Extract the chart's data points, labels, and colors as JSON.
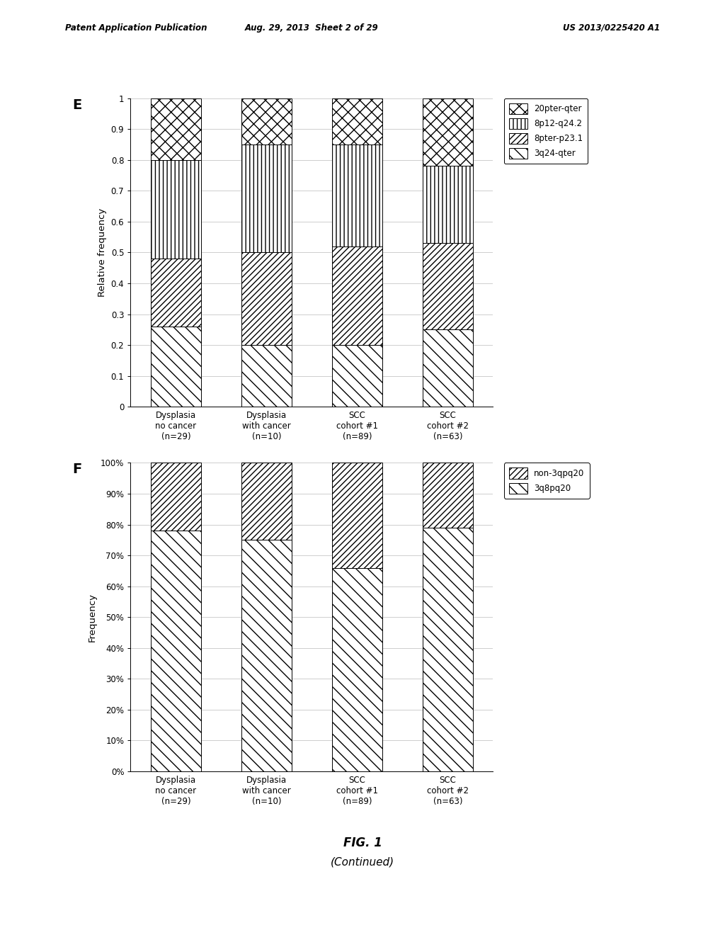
{
  "categories": [
    "Dysplasia\nno cancer\n(n=29)",
    "Dysplasia\nwith cancer\n(n=10)",
    "SCC\ncohort #1\n(n=89)",
    "SCC\ncohort #2\n(n=63)"
  ],
  "panel_e": {
    "label": "E",
    "ylabel": "Relative frequency",
    "ylim": [
      0,
      1
    ],
    "yticks": [
      0,
      0.1,
      0.2,
      0.3,
      0.4,
      0.5,
      0.6,
      0.7,
      0.8,
      0.9,
      1
    ],
    "segments": [
      "3q24-qter",
      "8pter-p23.1",
      "8p12-q24.2",
      "20pter-qter"
    ],
    "values": [
      [
        0.26,
        0.2,
        0.2,
        0.25
      ],
      [
        0.22,
        0.3,
        0.32,
        0.28
      ],
      [
        0.32,
        0.35,
        0.33,
        0.25
      ],
      [
        0.2,
        0.15,
        0.15,
        0.22
      ]
    ]
  },
  "panel_f": {
    "label": "F",
    "ylabel": "Frequency",
    "ylim": [
      0,
      1
    ],
    "yticks_labels": [
      "0%",
      "10%",
      "20%",
      "30%",
      "40%",
      "50%",
      "60%",
      "70%",
      "80%",
      "90%",
      "100%"
    ],
    "segments": [
      "3q8pq20",
      "non-3qpq20"
    ],
    "values": [
      [
        0.78,
        0.75,
        0.66,
        0.79
      ],
      [
        0.22,
        0.25,
        0.34,
        0.21
      ]
    ]
  },
  "figure_label": "FIG. 1",
  "figure_sublabel": "(Continued)",
  "header_left": "Patent Application Publication",
  "header_mid": "Aug. 29, 2013  Sheet 2 of 29",
  "header_right": "US 2013/0225420 A1",
  "bar_width": 0.55,
  "bg_color": "#ffffff",
  "grid_color": "#bbbbbb"
}
